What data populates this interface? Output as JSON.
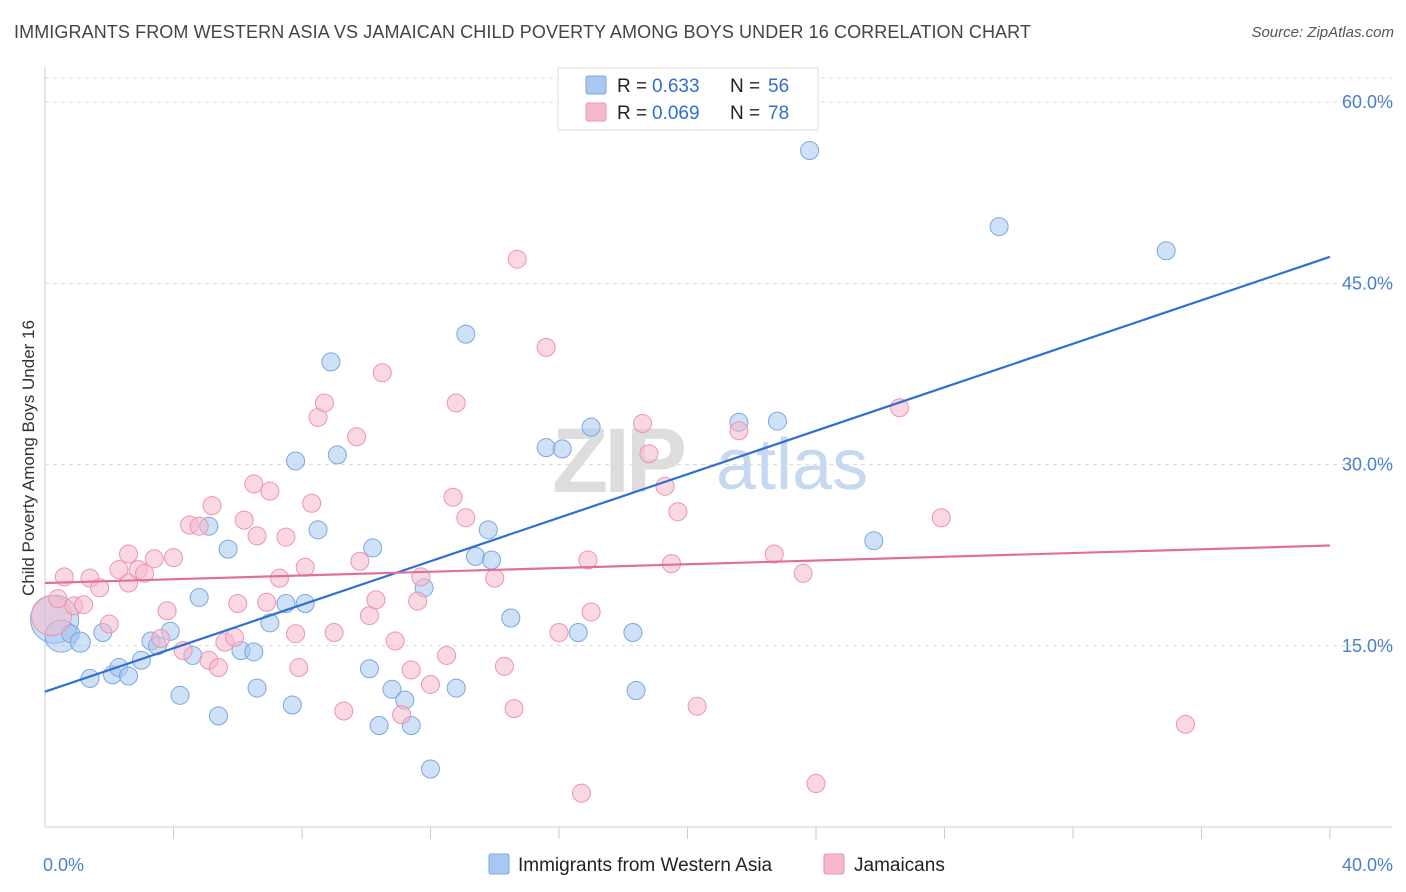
{
  "title": "IMMIGRANTS FROM WESTERN ASIA VS JAMAICAN CHILD POVERTY AMONG BOYS UNDER 16 CORRELATION CHART",
  "source": "Source: ZipAtlas.com",
  "watermark": {
    "zip": "ZIP",
    "atlas": "atlas"
  },
  "stats": [
    {
      "r_label": "R =",
      "r_value": "0.633",
      "n_label": "N =",
      "n_value": "56",
      "color": "#a8c8f0"
    },
    {
      "r_label": "R =",
      "r_value": "0.069",
      "n_label": "N =",
      "n_value": "78",
      "color": "#f6b8cc"
    }
  ],
  "chart_data": {
    "type": "scatter",
    "title": "IMMIGRANTS FROM WESTERN ASIA VS JAMAICAN CHILD POVERTY AMONG BOYS UNDER 16 CORRELATION CHART",
    "xlabel": "",
    "ylabel": "Child Poverty Among Boys Under 16",
    "xlim": [
      0,
      40
    ],
    "ylim": [
      0,
      62
    ],
    "x_tick_labels": [
      {
        "value": 0,
        "label": "0.0%"
      },
      {
        "value": 40,
        "label": "40.0%"
      }
    ],
    "y_tick_labels": [
      {
        "value": 15,
        "label": "15.0%"
      },
      {
        "value": 30,
        "label": "30.0%"
      },
      {
        "value": 45,
        "label": "45.0%"
      },
      {
        "value": 60,
        "label": "60.0%"
      }
    ],
    "grid": true,
    "legend_position": "bottom-center",
    "series": [
      {
        "name": "Immigrants from Western Asia",
        "color": "#a8c8f0",
        "stroke": "#7aa7df",
        "trend_color": "#2f6fce",
        "trend": {
          "x0": 0,
          "y0": 11.2,
          "x1": 40,
          "y1": 47.2
        },
        "points": [
          [
            0.3,
            17.2,
            24
          ],
          [
            0.5,
            15.8,
            16
          ],
          [
            0.8,
            16.0,
            9
          ],
          [
            1.1,
            15.3,
            10
          ],
          [
            1.4,
            12.3,
            9
          ],
          [
            1.8,
            16.1,
            9
          ],
          [
            2.1,
            12.6,
            9
          ],
          [
            2.3,
            13.2,
            9
          ],
          [
            2.6,
            12.5,
            9
          ],
          [
            3.0,
            13.8,
            9
          ],
          [
            3.3,
            15.4,
            9
          ],
          [
            3.5,
            15.0,
            9
          ],
          [
            3.9,
            16.2,
            9
          ],
          [
            4.2,
            10.9,
            9
          ],
          [
            4.6,
            14.2,
            9
          ],
          [
            4.8,
            19.0,
            9
          ],
          [
            5.1,
            24.9,
            9
          ],
          [
            5.4,
            9.2,
            9
          ],
          [
            5.7,
            23.0,
            9
          ],
          [
            6.1,
            14.6,
            9
          ],
          [
            6.5,
            14.5,
            9
          ],
          [
            6.6,
            11.5,
            9
          ],
          [
            7.0,
            16.9,
            9
          ],
          [
            7.5,
            18.5,
            9
          ],
          [
            7.7,
            10.1,
            9
          ],
          [
            7.8,
            30.3,
            9
          ],
          [
            8.1,
            18.5,
            9
          ],
          [
            8.5,
            24.6,
            9
          ],
          [
            8.9,
            38.5,
            9
          ],
          [
            9.1,
            30.8,
            9
          ],
          [
            10.1,
            13.1,
            9
          ],
          [
            10.2,
            23.1,
            9
          ],
          [
            10.4,
            8.4,
            9
          ],
          [
            10.8,
            11.4,
            9
          ],
          [
            11.2,
            10.5,
            9
          ],
          [
            11.4,
            8.4,
            9
          ],
          [
            11.8,
            19.8,
            9
          ],
          [
            12.0,
            4.8,
            9
          ],
          [
            12.8,
            11.5,
            9
          ],
          [
            13.1,
            40.8,
            9
          ],
          [
            13.4,
            22.4,
            9
          ],
          [
            13.8,
            24.6,
            9
          ],
          [
            13.9,
            22.1,
            9
          ],
          [
            14.5,
            17.3,
            9
          ],
          [
            15.6,
            31.4,
            9
          ],
          [
            16.1,
            31.3,
            9
          ],
          [
            16.6,
            16.1,
            9
          ],
          [
            17.0,
            33.1,
            9
          ],
          [
            18.3,
            16.1,
            9
          ],
          [
            18.4,
            11.3,
            9
          ],
          [
            21.6,
            33.5,
            9
          ],
          [
            22.8,
            33.6,
            9
          ],
          [
            23.8,
            56.0,
            9
          ],
          [
            25.8,
            23.7,
            9
          ],
          [
            29.7,
            49.7,
            9
          ],
          [
            34.9,
            47.7,
            9
          ]
        ]
      },
      {
        "name": "Jamaicans",
        "color": "#f6b8cc",
        "stroke": "#ee93b1",
        "trend_color": "#e0709a",
        "trend": {
          "x0": 0,
          "y0": 20.2,
          "x1": 40,
          "y1": 23.3
        },
        "points": [
          [
            0.2,
            17.5,
            20
          ],
          [
            0.4,
            18.9,
            9
          ],
          [
            0.6,
            20.7,
            9
          ],
          [
            0.9,
            18.3,
            9
          ],
          [
            1.2,
            18.4,
            9
          ],
          [
            1.4,
            20.6,
            9
          ],
          [
            1.7,
            19.8,
            9
          ],
          [
            2.0,
            16.8,
            9
          ],
          [
            2.3,
            21.3,
            9
          ],
          [
            2.6,
            20.2,
            9
          ],
          [
            2.6,
            22.6,
            9
          ],
          [
            2.9,
            21.3,
            9
          ],
          [
            3.1,
            21.0,
            9
          ],
          [
            3.4,
            22.2,
            9
          ],
          [
            3.6,
            15.6,
            9
          ],
          [
            3.8,
            17.9,
            9
          ],
          [
            4.0,
            22.3,
            9
          ],
          [
            4.3,
            14.6,
            9
          ],
          [
            4.5,
            25.0,
            9
          ],
          [
            4.8,
            24.9,
            9
          ],
          [
            5.1,
            13.8,
            9
          ],
          [
            5.2,
            26.6,
            9
          ],
          [
            5.4,
            13.2,
            9
          ],
          [
            5.6,
            15.3,
            9
          ],
          [
            5.9,
            15.7,
            9
          ],
          [
            6.0,
            18.5,
            9
          ],
          [
            6.2,
            25.4,
            9
          ],
          [
            6.5,
            28.4,
            9
          ],
          [
            6.6,
            24.1,
            9
          ],
          [
            6.9,
            18.6,
            9
          ],
          [
            7.0,
            27.8,
            9
          ],
          [
            7.3,
            20.6,
            9
          ],
          [
            7.5,
            24.0,
            9
          ],
          [
            7.8,
            16.0,
            9
          ],
          [
            7.9,
            13.2,
            9
          ],
          [
            8.1,
            21.5,
            9
          ],
          [
            8.3,
            26.8,
            9
          ],
          [
            8.5,
            33.9,
            9
          ],
          [
            8.7,
            35.1,
            9
          ],
          [
            9.0,
            16.1,
            9
          ],
          [
            9.3,
            9.6,
            9
          ],
          [
            9.7,
            32.3,
            9
          ],
          [
            9.8,
            22.0,
            9
          ],
          [
            10.1,
            17.5,
            9
          ],
          [
            10.3,
            18.8,
            9
          ],
          [
            10.5,
            37.6,
            9
          ],
          [
            10.9,
            15.4,
            9
          ],
          [
            11.1,
            9.3,
            9
          ],
          [
            11.4,
            13.0,
            9
          ],
          [
            11.6,
            18.7,
            9
          ],
          [
            11.7,
            20.7,
            9
          ],
          [
            12.0,
            11.8,
            9
          ],
          [
            12.5,
            14.2,
            9
          ],
          [
            12.7,
            27.3,
            9
          ],
          [
            12.8,
            35.1,
            9
          ],
          [
            13.1,
            25.6,
            9
          ],
          [
            14.0,
            20.6,
            9
          ],
          [
            14.3,
            13.3,
            9
          ],
          [
            14.6,
            9.8,
            9
          ],
          [
            14.7,
            47.0,
            9
          ],
          [
            15.6,
            39.7,
            9
          ],
          [
            16.0,
            16.1,
            9
          ],
          [
            16.7,
            2.8,
            9
          ],
          [
            16.9,
            22.1,
            9
          ],
          [
            17.0,
            17.8,
            9
          ],
          [
            18.6,
            33.4,
            9
          ],
          [
            18.8,
            30.9,
            9
          ],
          [
            19.3,
            28.2,
            9
          ],
          [
            19.5,
            21.8,
            9
          ],
          [
            19.7,
            26.1,
            9
          ],
          [
            20.3,
            10.0,
            9
          ],
          [
            21.6,
            32.8,
            9
          ],
          [
            22.7,
            22.6,
            9
          ],
          [
            23.6,
            21.0,
            9
          ],
          [
            24.0,
            3.6,
            9
          ],
          [
            26.6,
            34.7,
            9
          ],
          [
            27.9,
            25.6,
            9
          ],
          [
            35.5,
            8.5,
            9
          ]
        ]
      }
    ]
  },
  "legend": [
    {
      "label": "Immigrants from Western Asia",
      "color": "#a8c8f0",
      "stroke": "#7aa7df"
    },
    {
      "label": "Jamaicans",
      "color": "#f6b8cc",
      "stroke": "#ee93b1"
    }
  ]
}
